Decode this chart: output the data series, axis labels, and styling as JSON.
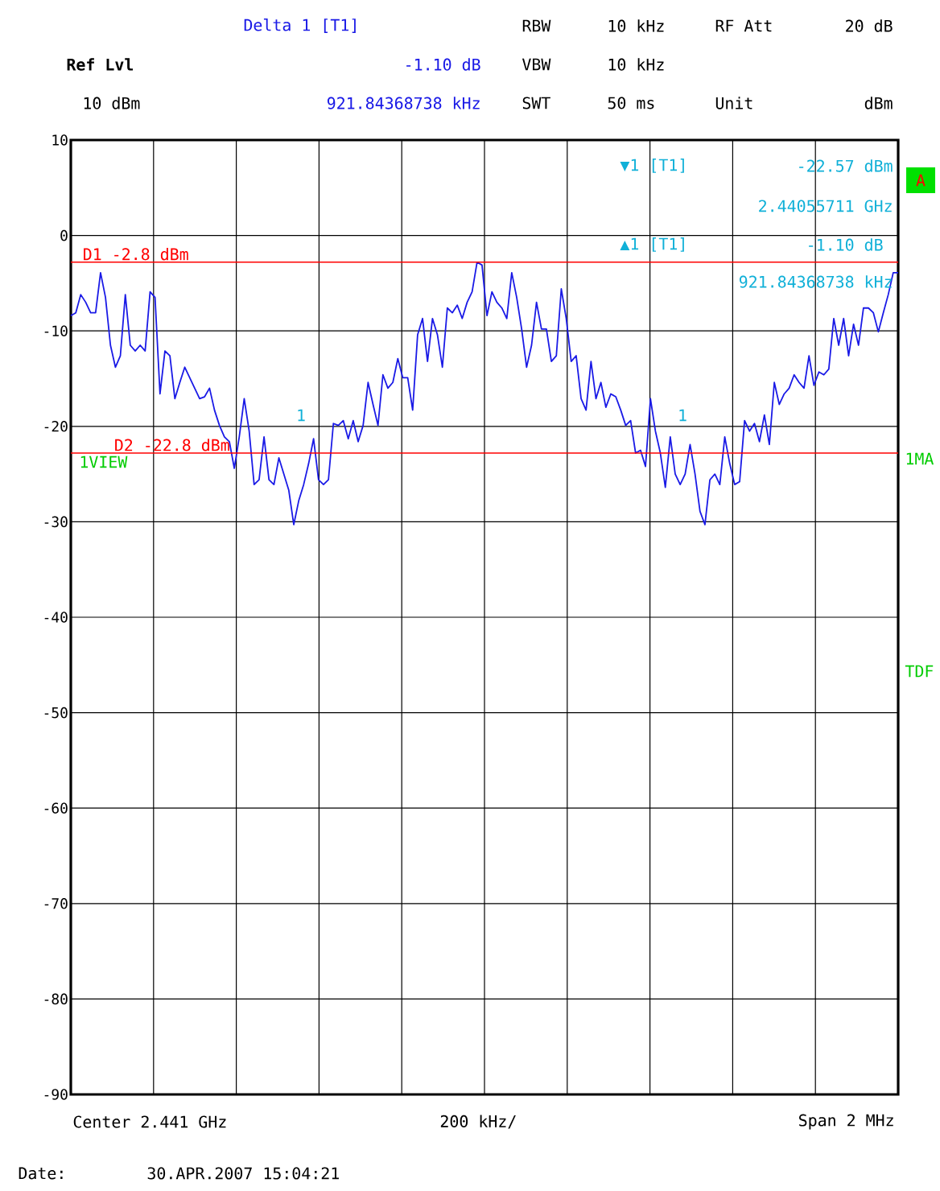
{
  "chart_data": {
    "type": "line",
    "ylim": [
      -90,
      10
    ],
    "categories": [
      null,
      null,
      null,
      null,
      null,
      null,
      null,
      null,
      null,
      null,
      null,
      null,
      null,
      null,
      null,
      null,
      null,
      null,
      null,
      null,
      null,
      null,
      null,
      null,
      null,
      null,
      null,
      null,
      null,
      null,
      null,
      null,
      null,
      null,
      null,
      null,
      null,
      null,
      null,
      null,
      null,
      null,
      null,
      null,
      null,
      null,
      null,
      null,
      null,
      null,
      null,
      null,
      null,
      null,
      null,
      null,
      null,
      null,
      null,
      null,
      null,
      null,
      null,
      null,
      null,
      null,
      null,
      null,
      null,
      null,
      null,
      null,
      null,
      null,
      null,
      null,
      null,
      null,
      null,
      null,
      null,
      null,
      null,
      null,
      null,
      null,
      null,
      null,
      null,
      null,
      null,
      null,
      null,
      null,
      null,
      null,
      null,
      null,
      null,
      null,
      null,
      null,
      null,
      null,
      null,
      null,
      null,
      null,
      null,
      null,
      null,
      null,
      null,
      null,
      null,
      null,
      null,
      null,
      null,
      null,
      null,
      null,
      null,
      null,
      null,
      null,
      null,
      null,
      null,
      null,
      null,
      null,
      null,
      null,
      null,
      null,
      null,
      null,
      null,
      null,
      null,
      null,
      null,
      null,
      null,
      null,
      null,
      null,
      null,
      null,
      null,
      null,
      null,
      null,
      null,
      null,
      null,
      null,
      null,
      null,
      null,
      null,
      null,
      null,
      null,
      null,
      null,
      null
    ],
    "yticks": [
      10,
      0,
      -10,
      -20,
      -30,
      -40,
      -50,
      -60,
      -70,
      -80,
      -90
    ],
    "tick_labels": "y",
    "grid": true,
    "line_style": "solid",
    "series": [
      {
        "color": "#1a1ae6",
        "values": [
          -8.4,
          -8.1,
          -6.2,
          -7.0,
          -8.1,
          -8.1,
          -3.9,
          -6.5,
          -11.5,
          -13.8,
          -12.6,
          -6.2,
          -11.5,
          -12.1,
          -11.5,
          -12.1,
          -5.9,
          -6.5,
          -16.6,
          -12.1,
          -12.6,
          -17.1,
          -15.4,
          -13.8,
          -14.9,
          -16.0,
          -17.1,
          -16.9,
          -16.0,
          -18.3,
          -19.9,
          -21.1,
          -21.6,
          -24.4,
          -21.1,
          -17.1,
          -20.5,
          -26.1,
          -25.6,
          -21.1,
          -25.6,
          -26.1,
          -23.3,
          -25.0,
          -26.7,
          -30.3,
          -27.8,
          -26.1,
          -23.9,
          -21.3,
          -25.6,
          -26.1,
          -25.6,
          -19.7,
          -19.9,
          -19.4,
          -21.3,
          -19.4,
          -21.6,
          -19.9,
          -15.4,
          -17.7,
          -19.9,
          -14.6,
          -16.0,
          -15.4,
          -12.9,
          -14.9,
          -14.9,
          -18.3,
          -10.4,
          -8.7,
          -13.2,
          -8.7,
          -10.4,
          -13.8,
          -7.6,
          -8.1,
          -7.3,
          -8.7,
          -7.0,
          -5.9,
          -2.8,
          -3.1,
          -8.4,
          -5.9,
          -7.0,
          -7.6,
          -8.7,
          -3.9,
          -6.5,
          -9.8,
          -13.8,
          -11.5,
          -7.0,
          -9.8,
          -9.8,
          -13.2,
          -12.6,
          -5.6,
          -8.7,
          -13.2,
          -12.6,
          -17.1,
          -18.3,
          -13.2,
          -17.1,
          -15.4,
          -18.0,
          -16.6,
          -16.9,
          -18.3,
          -19.9,
          -19.4,
          -22.8,
          -22.5,
          -24.2,
          -17.1,
          -20.5,
          -22.8,
          -26.4,
          -21.1,
          -25.0,
          -26.1,
          -25.0,
          -21.9,
          -25.0,
          -28.9,
          -30.3,
          -25.6,
          -25.0,
          -26.1,
          -21.1,
          -23.9,
          -26.1,
          -25.8,
          -19.4,
          -20.5,
          -19.7,
          -21.6,
          -18.8,
          -21.9,
          -15.4,
          -17.7,
          -16.6,
          -16.0,
          -14.6,
          -15.4,
          -16.0,
          -12.6,
          -15.7,
          -14.3,
          -14.6,
          -14.0,
          -8.7,
          -11.5,
          -8.7,
          -12.6,
          -9.3,
          -11.5,
          -7.6,
          -7.6,
          -8.1,
          -10.1,
          -8.1,
          -6.2,
          -3.9,
          -3.9
        ]
      }
    ],
    "ref_lines": [
      {
        "axis": "y",
        "value": -2.8,
        "label": "D1 -2.8 dBm",
        "color": "#ff0000"
      },
      {
        "axis": "y",
        "value": -22.8,
        "label": "D2 -22.8 dBm",
        "color": "#ff0000"
      }
    ],
    "annotations": [
      "Delta 1 [T1]",
      "-1.10 dB",
      "921.84368738 kHz",
      "RBW",
      "10 kHz",
      "VBW",
      "10 kHz",
      "SWT",
      "50 ms",
      "RF Att",
      "20 dB",
      "Unit",
      "dBm",
      "Ref Lvl",
      "10 dBm",
      "▼1 [T1]",
      "-22.57 dBm",
      "2.44055711 GHz",
      "▲1 [T1]",
      "-1.10 dB",
      "921.84368738 kHz",
      "A",
      "1VIEW",
      "1MA",
      "TDF",
      "Center 2.441 GHz",
      "200 kHz/",
      "Span 2 MHz",
      "Date:",
      "30.APR.2007  15:04:21",
      "1",
      "1"
    ]
  }
}
